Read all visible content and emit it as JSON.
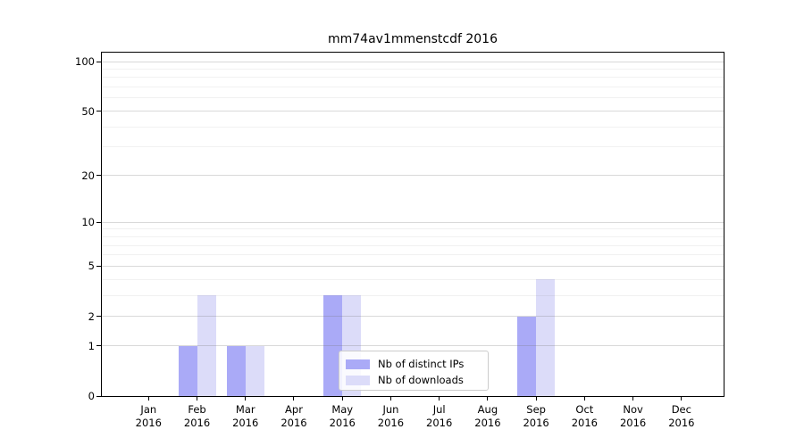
{
  "title": "mm74av1mmenstcdf 2016",
  "chart_data": {
    "type": "bar",
    "categories": [
      {
        "month": "Jan",
        "year": "2016"
      },
      {
        "month": "Feb",
        "year": "2016"
      },
      {
        "month": "Mar",
        "year": "2016"
      },
      {
        "month": "Apr",
        "year": "2016"
      },
      {
        "month": "May",
        "year": "2016"
      },
      {
        "month": "Jun",
        "year": "2016"
      },
      {
        "month": "Jul",
        "year": "2016"
      },
      {
        "month": "Aug",
        "year": "2016"
      },
      {
        "month": "Sep",
        "year": "2016"
      },
      {
        "month": "Oct",
        "year": "2016"
      },
      {
        "month": "Nov",
        "year": "2016"
      },
      {
        "month": "Dec",
        "year": "2016"
      }
    ],
    "series": [
      {
        "name": "Nb of distinct IPs",
        "color": "#aaaaf7",
        "values": [
          0,
          1,
          1,
          0,
          3,
          0,
          0,
          0,
          2,
          0,
          0,
          0
        ]
      },
      {
        "name": "Nb of downloads",
        "color": "#dcdcf9",
        "values": [
          0,
          3,
          1,
          0,
          3,
          0,
          0,
          0,
          4,
          0,
          0,
          0
        ]
      }
    ],
    "title": "mm74av1mmenstcdf 2016",
    "xlabel": "",
    "ylabel": "",
    "yscale": "log(v+1)",
    "ylim": [
      0,
      116
    ],
    "yticks": [
      0,
      1,
      2,
      5,
      10,
      20,
      50,
      100
    ],
    "minor_gridlines": [
      3,
      4,
      6,
      7,
      8,
      9,
      30,
      40,
      60,
      70,
      80,
      90
    ],
    "grid": "on",
    "legend_position": "lower center"
  }
}
